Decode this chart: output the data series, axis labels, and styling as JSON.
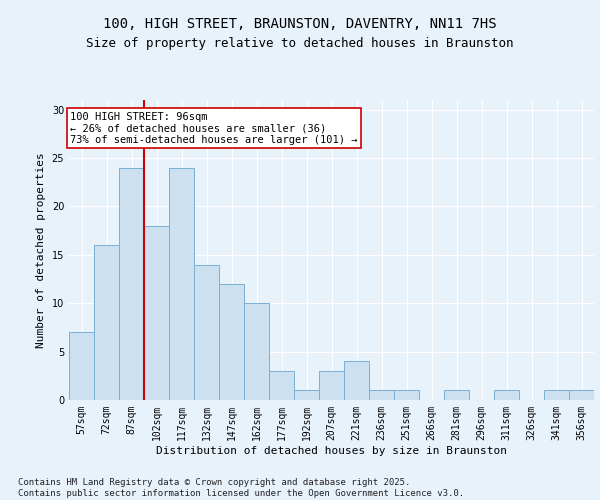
{
  "title": "100, HIGH STREET, BRAUNSTON, DAVENTRY, NN11 7HS",
  "subtitle": "Size of property relative to detached houses in Braunston",
  "xlabel": "Distribution of detached houses by size in Braunston",
  "ylabel": "Number of detached properties",
  "categories": [
    "57sqm",
    "72sqm",
    "87sqm",
    "102sqm",
    "117sqm",
    "132sqm",
    "147sqm",
    "162sqm",
    "177sqm",
    "192sqm",
    "207sqm",
    "221sqm",
    "236sqm",
    "251sqm",
    "266sqm",
    "281sqm",
    "296sqm",
    "311sqm",
    "326sqm",
    "341sqm",
    "356sqm"
  ],
  "values": [
    7,
    16,
    24,
    18,
    24,
    14,
    12,
    10,
    3,
    1,
    3,
    4,
    1,
    1,
    0,
    1,
    0,
    1,
    0,
    1,
    1
  ],
  "bar_color": "#cce0f0",
  "bar_edge_color": "#7aafd4",
  "vline_x": 2.5,
  "vline_color": "#cc0000",
  "annotation_text": "100 HIGH STREET: 96sqm\n← 26% of detached houses are smaller (36)\n73% of semi-detached houses are larger (101) →",
  "ylim": [
    0,
    31
  ],
  "yticks": [
    0,
    5,
    10,
    15,
    20,
    25,
    30
  ],
  "bg_color": "#e8f2fb",
  "plot_bg_color": "#e8f2fb",
  "footer": "Contains HM Land Registry data © Crown copyright and database right 2025.\nContains public sector information licensed under the Open Government Licence v3.0.",
  "title_fontsize": 10,
  "subtitle_fontsize": 9,
  "xlabel_fontsize": 8,
  "ylabel_fontsize": 8,
  "tick_fontsize": 7,
  "annotation_fontsize": 7.5,
  "footer_fontsize": 6.5
}
